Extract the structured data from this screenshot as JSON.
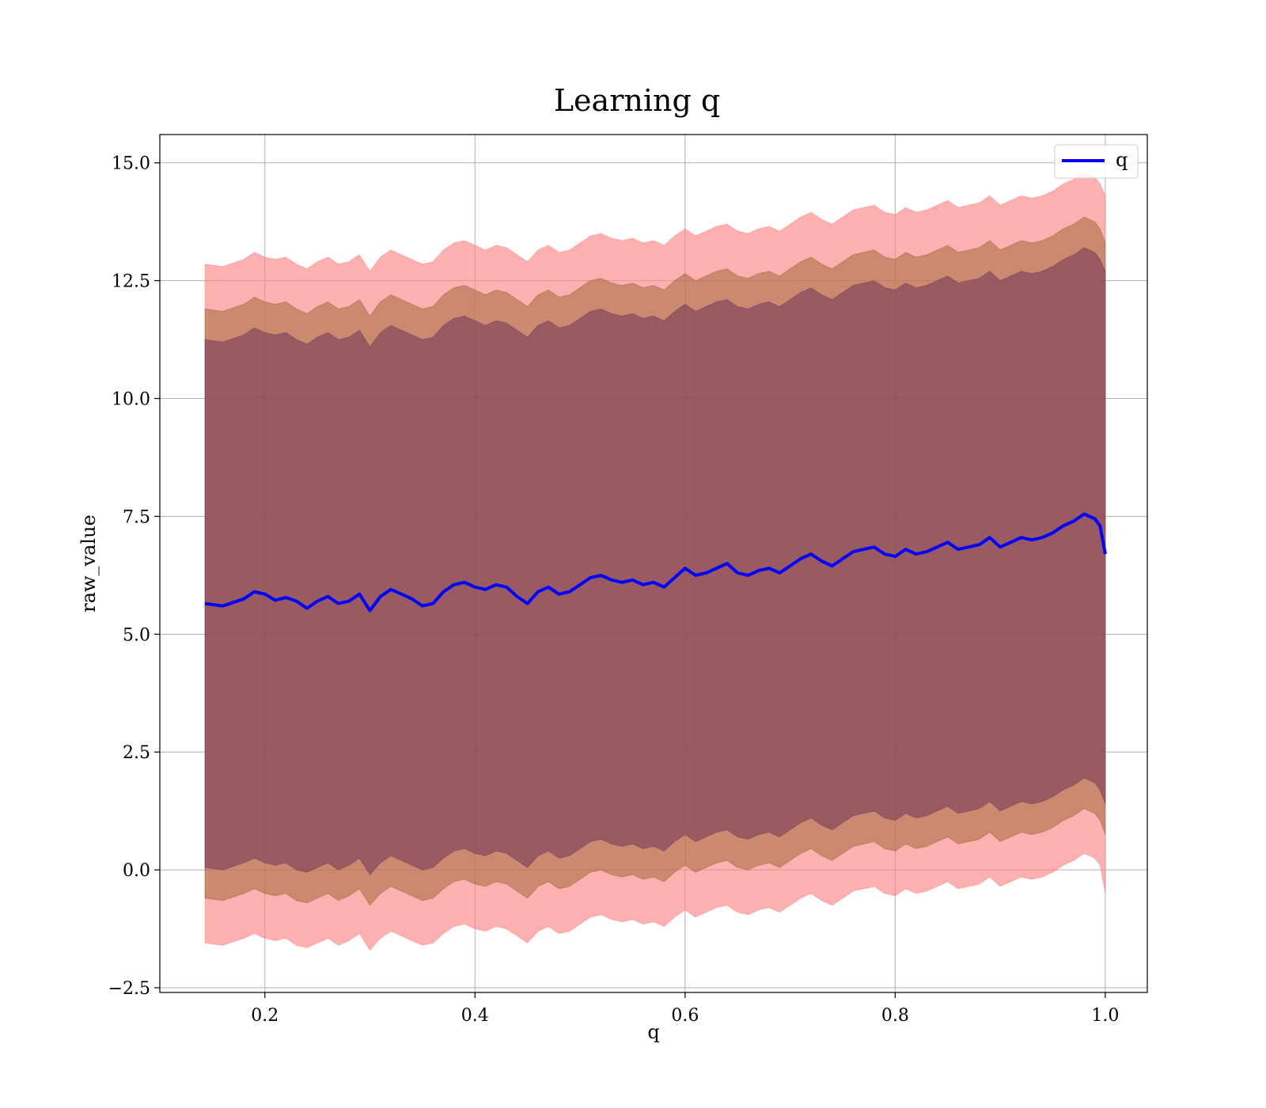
{
  "chart_data": {
    "type": "area",
    "title": "Learning q",
    "xlabel": "q",
    "ylabel": "raw_value",
    "xlim": [
      0.1,
      1.04
    ],
    "ylim": [
      -2.6,
      15.6
    ],
    "xticks": [
      0.2,
      0.4,
      0.6,
      0.8,
      1.0
    ],
    "xtick_labels": [
      "0.2",
      "0.4",
      "0.6",
      "0.8",
      "1.0"
    ],
    "yticks": [
      -2.5,
      0.0,
      2.5,
      5.0,
      7.5,
      10.0,
      12.5,
      15.0
    ],
    "ytick_labels": [
      "−2.5",
      "0.0",
      "2.5",
      "5.0",
      "7.5",
      "10.0",
      "12.5",
      "15.0"
    ],
    "grid": true,
    "legend": {
      "position": "top-right",
      "entries": [
        "q"
      ]
    },
    "colors": {
      "line": "#0000ff",
      "band_outer": "#ff7f7f",
      "band_middle": "#a06a3a",
      "band_inner": "#7a3a5a",
      "grid": "#b0b0b0",
      "axes": "#000000"
    },
    "series": [
      {
        "name": "q",
        "x": [
          0.143,
          0.16,
          0.18,
          0.19,
          0.2,
          0.21,
          0.22,
          0.23,
          0.24,
          0.25,
          0.26,
          0.27,
          0.28,
          0.29,
          0.3,
          0.31,
          0.32,
          0.33,
          0.34,
          0.35,
          0.36,
          0.37,
          0.38,
          0.39,
          0.4,
          0.41,
          0.42,
          0.43,
          0.44,
          0.45,
          0.46,
          0.47,
          0.48,
          0.49,
          0.5,
          0.51,
          0.52,
          0.53,
          0.54,
          0.55,
          0.56,
          0.57,
          0.58,
          0.59,
          0.6,
          0.61,
          0.62,
          0.63,
          0.64,
          0.65,
          0.66,
          0.67,
          0.68,
          0.69,
          0.7,
          0.71,
          0.72,
          0.73,
          0.74,
          0.75,
          0.76,
          0.77,
          0.78,
          0.79,
          0.8,
          0.81,
          0.82,
          0.83,
          0.84,
          0.85,
          0.86,
          0.87,
          0.88,
          0.89,
          0.9,
          0.91,
          0.92,
          0.93,
          0.94,
          0.95,
          0.96,
          0.97,
          0.98,
          0.99,
          0.995,
          1.0
        ],
        "mean": [
          5.65,
          5.6,
          5.75,
          5.9,
          5.85,
          5.72,
          5.78,
          5.7,
          5.55,
          5.7,
          5.8,
          5.65,
          5.7,
          5.85,
          5.5,
          5.8,
          5.95,
          5.85,
          5.75,
          5.6,
          5.65,
          5.9,
          6.05,
          6.1,
          6.0,
          5.95,
          6.05,
          6.0,
          5.8,
          5.65,
          5.9,
          6.0,
          5.85,
          5.9,
          6.05,
          6.2,
          6.25,
          6.15,
          6.1,
          6.15,
          6.05,
          6.1,
          6.0,
          6.2,
          6.4,
          6.25,
          6.3,
          6.4,
          6.5,
          6.3,
          6.25,
          6.35,
          6.4,
          6.3,
          6.45,
          6.6,
          6.7,
          6.55,
          6.45,
          6.6,
          6.75,
          6.8,
          6.85,
          6.7,
          6.65,
          6.8,
          6.7,
          6.75,
          6.85,
          6.95,
          6.8,
          6.85,
          6.9,
          7.05,
          6.85,
          6.95,
          7.05,
          7.0,
          7.05,
          7.15,
          7.3,
          7.4,
          7.55,
          7.45,
          7.3,
          6.7
        ],
        "outer_low": [
          -1.55,
          -1.6,
          -1.45,
          -1.35,
          -1.45,
          -1.5,
          -1.45,
          -1.6,
          -1.65,
          -1.55,
          -1.45,
          -1.6,
          -1.5,
          -1.35,
          -1.7,
          -1.45,
          -1.3,
          -1.4,
          -1.5,
          -1.6,
          -1.55,
          -1.35,
          -1.2,
          -1.15,
          -1.25,
          -1.3,
          -1.2,
          -1.25,
          -1.4,
          -1.55,
          -1.3,
          -1.2,
          -1.35,
          -1.3,
          -1.15,
          -1.0,
          -0.95,
          -1.05,
          -1.1,
          -1.05,
          -1.15,
          -1.1,
          -1.2,
          -1.0,
          -0.85,
          -1.0,
          -0.9,
          -0.8,
          -0.75,
          -0.9,
          -0.95,
          -0.85,
          -0.8,
          -0.9,
          -0.75,
          -0.6,
          -0.5,
          -0.65,
          -0.75,
          -0.6,
          -0.45,
          -0.4,
          -0.35,
          -0.5,
          -0.55,
          -0.4,
          -0.5,
          -0.45,
          -0.35,
          -0.25,
          -0.4,
          -0.35,
          -0.3,
          -0.15,
          -0.35,
          -0.25,
          -0.15,
          -0.2,
          -0.15,
          -0.05,
          0.1,
          0.2,
          0.35,
          0.25,
          0.1,
          -0.5
        ],
        "middle_low": [
          -0.6,
          -0.65,
          -0.5,
          -0.4,
          -0.5,
          -0.55,
          -0.5,
          -0.65,
          -0.7,
          -0.6,
          -0.5,
          -0.65,
          -0.55,
          -0.4,
          -0.75,
          -0.5,
          -0.35,
          -0.45,
          -0.55,
          -0.65,
          -0.6,
          -0.4,
          -0.25,
          -0.2,
          -0.3,
          -0.35,
          -0.25,
          -0.3,
          -0.45,
          -0.6,
          -0.35,
          -0.25,
          -0.4,
          -0.35,
          -0.2,
          -0.05,
          0.0,
          -0.1,
          -0.15,
          -0.1,
          -0.2,
          -0.15,
          -0.25,
          -0.05,
          0.1,
          -0.05,
          0.05,
          0.15,
          0.2,
          0.05,
          0.0,
          0.1,
          0.15,
          0.05,
          0.2,
          0.35,
          0.45,
          0.3,
          0.2,
          0.35,
          0.5,
          0.55,
          0.6,
          0.45,
          0.4,
          0.55,
          0.45,
          0.5,
          0.6,
          0.7,
          0.55,
          0.6,
          0.65,
          0.8,
          0.6,
          0.7,
          0.8,
          0.75,
          0.8,
          0.9,
          1.05,
          1.15,
          1.3,
          1.2,
          1.05,
          0.75
        ],
        "inner_low": [
          0.05,
          0.0,
          0.15,
          0.25,
          0.15,
          0.1,
          0.15,
          0.0,
          -0.05,
          0.05,
          0.15,
          0.0,
          0.1,
          0.25,
          -0.1,
          0.15,
          0.3,
          0.2,
          0.1,
          0.0,
          0.05,
          0.25,
          0.4,
          0.45,
          0.35,
          0.3,
          0.4,
          0.35,
          0.2,
          0.05,
          0.3,
          0.4,
          0.25,
          0.3,
          0.45,
          0.6,
          0.65,
          0.55,
          0.5,
          0.55,
          0.45,
          0.5,
          0.4,
          0.6,
          0.75,
          0.6,
          0.7,
          0.8,
          0.85,
          0.7,
          0.65,
          0.75,
          0.8,
          0.7,
          0.85,
          1.0,
          1.1,
          0.95,
          0.85,
          1.0,
          1.15,
          1.2,
          1.25,
          1.1,
          1.05,
          1.2,
          1.1,
          1.15,
          1.25,
          1.35,
          1.2,
          1.25,
          1.3,
          1.45,
          1.25,
          1.35,
          1.45,
          1.4,
          1.45,
          1.55,
          1.7,
          1.8,
          1.95,
          1.85,
          1.7,
          1.4
        ],
        "inner_high": [
          11.25,
          11.2,
          11.35,
          11.5,
          11.4,
          11.35,
          11.4,
          11.25,
          11.15,
          11.3,
          11.4,
          11.25,
          11.3,
          11.45,
          11.1,
          11.4,
          11.55,
          11.45,
          11.35,
          11.25,
          11.3,
          11.55,
          11.7,
          11.75,
          11.65,
          11.55,
          11.65,
          11.6,
          11.45,
          11.3,
          11.55,
          11.65,
          11.5,
          11.55,
          11.7,
          11.85,
          11.9,
          11.8,
          11.75,
          11.8,
          11.7,
          11.75,
          11.65,
          11.85,
          12.0,
          11.85,
          11.95,
          12.05,
          12.1,
          11.95,
          11.9,
          12.0,
          12.05,
          11.95,
          12.1,
          12.25,
          12.35,
          12.2,
          12.1,
          12.25,
          12.4,
          12.45,
          12.5,
          12.35,
          12.3,
          12.45,
          12.35,
          12.4,
          12.5,
          12.6,
          12.45,
          12.5,
          12.55,
          12.7,
          12.5,
          12.6,
          12.7,
          12.65,
          12.7,
          12.8,
          12.95,
          13.05,
          13.2,
          13.1,
          12.95,
          12.7
        ],
        "middle_high": [
          11.9,
          11.85,
          12.0,
          12.15,
          12.05,
          12.0,
          12.05,
          11.9,
          11.8,
          11.95,
          12.05,
          11.9,
          11.95,
          12.1,
          11.75,
          12.05,
          12.2,
          12.1,
          12.0,
          11.9,
          11.95,
          12.2,
          12.35,
          12.4,
          12.3,
          12.2,
          12.3,
          12.25,
          12.1,
          11.95,
          12.2,
          12.3,
          12.15,
          12.2,
          12.35,
          12.5,
          12.55,
          12.45,
          12.4,
          12.45,
          12.35,
          12.4,
          12.3,
          12.5,
          12.65,
          12.5,
          12.6,
          12.7,
          12.75,
          12.6,
          12.55,
          12.65,
          12.7,
          12.6,
          12.75,
          12.9,
          13.0,
          12.85,
          12.75,
          12.9,
          13.05,
          13.1,
          13.15,
          13.0,
          12.95,
          13.1,
          13.0,
          13.05,
          13.15,
          13.25,
          13.1,
          13.15,
          13.2,
          13.35,
          13.15,
          13.25,
          13.35,
          13.3,
          13.35,
          13.45,
          13.6,
          13.7,
          13.85,
          13.75,
          13.6,
          13.3
        ],
        "outer_high": [
          12.85,
          12.8,
          12.95,
          13.1,
          13.0,
          12.95,
          13.0,
          12.85,
          12.75,
          12.9,
          13.0,
          12.85,
          12.9,
          13.05,
          12.7,
          13.0,
          13.15,
          13.05,
          12.95,
          12.85,
          12.9,
          13.15,
          13.3,
          13.35,
          13.25,
          13.15,
          13.25,
          13.2,
          13.05,
          12.9,
          13.15,
          13.25,
          13.1,
          13.15,
          13.3,
          13.45,
          13.5,
          13.4,
          13.35,
          13.4,
          13.3,
          13.35,
          13.25,
          13.45,
          13.6,
          13.45,
          13.55,
          13.65,
          13.7,
          13.55,
          13.5,
          13.6,
          13.65,
          13.55,
          13.7,
          13.85,
          13.95,
          13.8,
          13.7,
          13.85,
          14.0,
          14.05,
          14.1,
          13.95,
          13.9,
          14.05,
          13.95,
          14.0,
          14.1,
          14.2,
          14.05,
          14.1,
          14.15,
          14.3,
          14.1,
          14.2,
          14.3,
          14.25,
          14.3,
          14.4,
          14.55,
          14.65,
          14.8,
          14.7,
          14.55,
          14.3
        ]
      }
    ]
  }
}
